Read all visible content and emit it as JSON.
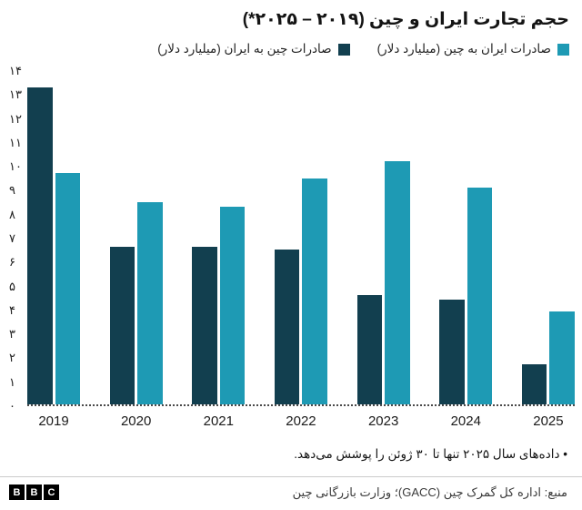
{
  "title": "حجم تجارت ایران و چین (۲۰۱۹ – ۲۰۲۵*)",
  "legend": {
    "items": [
      {
        "label": "صادرات ایران به چین (میلیارد دلار)",
        "color": "#1e9ab4"
      },
      {
        "label": "صادرات چین به ایران (میلیارد دلار)",
        "color": "#123f4f"
      }
    ]
  },
  "chart_data": {
    "type": "bar",
    "bar_orientation": "vertical",
    "categories": [
      "2019",
      "2020",
      "2021",
      "2022",
      "2023",
      "2024",
      "2025"
    ],
    "series": [
      {
        "name": "صادرات چین به ایران (میلیارد دلار)",
        "color": "#123f4f",
        "values": [
          13.3,
          6.6,
          6.6,
          6.5,
          4.6,
          4.4,
          1.7
        ]
      },
      {
        "name": "صادرات ایران به چین (میلیارد دلار)",
        "color": "#1e9ab4",
        "values": [
          9.7,
          8.5,
          8.3,
          9.5,
          10.2,
          9.1,
          3.9
        ]
      }
    ],
    "ylim": [
      0,
      14
    ],
    "ytick_labels": [
      "۰",
      "۱",
      "۲",
      "۳",
      "۴",
      "۵",
      "۶",
      "۷",
      "۸",
      "۹",
      "۱۰",
      "۱۱",
      "۱۲",
      "۱۳",
      "۱۴"
    ],
    "grid": false,
    "legend_position": "top-right",
    "title": "حجم تجارت ایران و چین (۲۰۱۹ – ۲۰۲۵*)"
  },
  "footnote": "• داده‌های سال ۲۰۲۵ تنها تا ۳۰ ژوئن را پوشش می‌دهد.",
  "footer": {
    "source": "منبع: اداره کل گمرک چین (GACC)؛ وزارت بازرگانی چین",
    "logo_letters": [
      "B",
      "B",
      "C"
    ]
  }
}
